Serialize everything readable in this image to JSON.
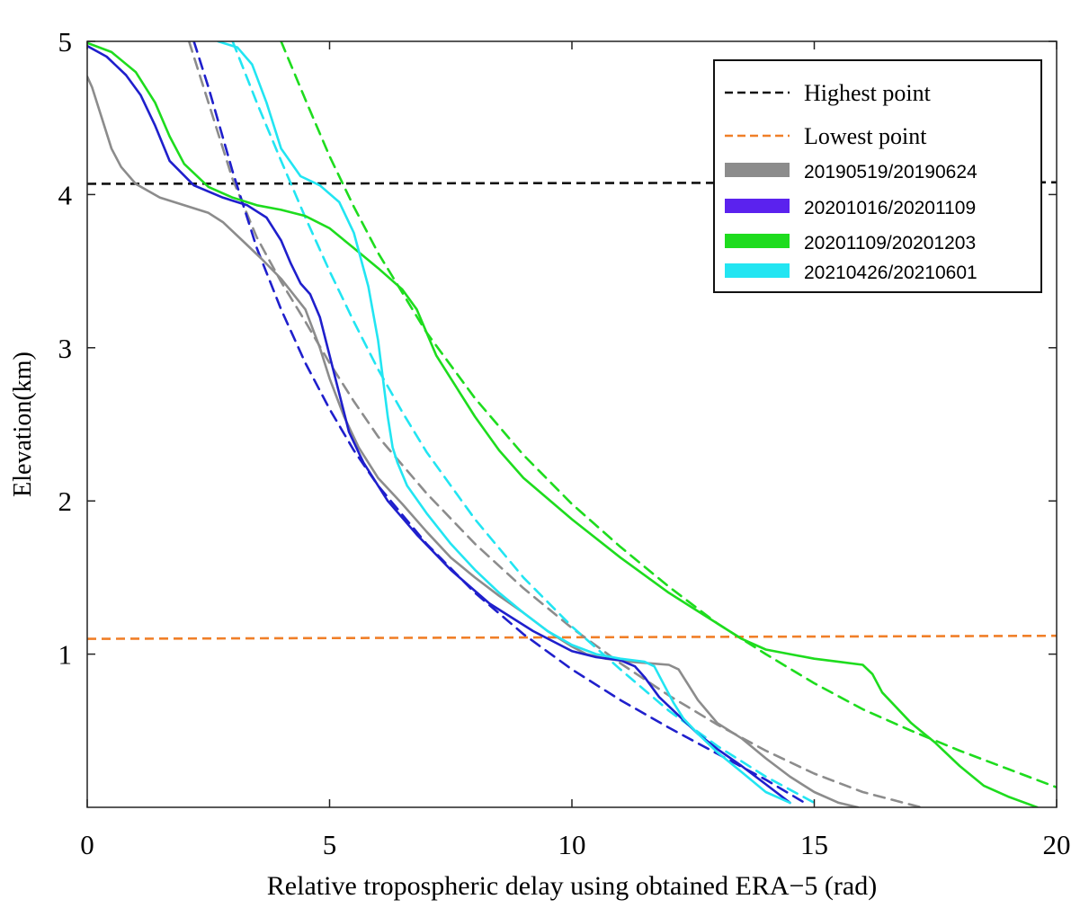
{
  "chart_data": {
    "type": "line",
    "title": "",
    "xlabel": "Relative tropospheric delay using obtained ERA−5 (rad)",
    "ylabel": "Elevation(km)",
    "xlim": [
      0,
      20
    ],
    "ylim": [
      0,
      5
    ],
    "xticks": [
      0,
      5,
      10,
      15,
      20
    ],
    "yticks": [
      1,
      2,
      3,
      4,
      5
    ],
    "xtick_labels": [
      "0",
      "5",
      "10",
      "15",
      "20"
    ],
    "ytick_labels": [
      "1",
      "2",
      "3",
      "4",
      "5"
    ],
    "grid": false,
    "legend_position": "top-right",
    "reference_lines": [
      {
        "name": "Highest point",
        "color": "#111111",
        "style": "dashed",
        "x": [
          0,
          20
        ],
        "y": [
          4.07,
          4.08
        ]
      },
      {
        "name": "Lowest point",
        "color": "#f07f28",
        "style": "dashed",
        "x": [
          0,
          20
        ],
        "y": [
          1.1,
          1.12
        ]
      }
    ],
    "series": [
      {
        "name": "20190519/20190624",
        "color": "#8c8c8c",
        "style": "solid",
        "x": [
          0,
          0.1,
          0.3,
          0.5,
          0.7,
          1,
          1.5,
          2,
          2.5,
          2.8,
          3.2,
          3.6,
          4,
          4.5,
          4.8,
          5,
          5.3,
          5.6,
          6,
          6.5,
          7,
          7.5,
          8,
          8.5,
          9,
          9.5,
          10,
          10.3,
          10.7,
          11.2,
          12,
          12.2,
          12.4,
          12.6,
          13,
          13.5,
          14,
          14.5,
          15,
          15.5,
          15.9
        ],
        "y": [
          4.77,
          4.7,
          4.5,
          4.3,
          4.18,
          4.07,
          3.98,
          3.93,
          3.88,
          3.82,
          3.7,
          3.58,
          3.45,
          3.25,
          3.0,
          2.8,
          2.55,
          2.35,
          2.15,
          1.98,
          1.8,
          1.63,
          1.5,
          1.38,
          1.27,
          1.15,
          1.05,
          1.0,
          0.97,
          0.95,
          0.93,
          0.9,
          0.8,
          0.7,
          0.55,
          0.45,
          0.32,
          0.2,
          0.1,
          0.03,
          0.0
        ]
      },
      {
        "name": "20201016/20201109",
        "color": "#1f1fcc",
        "legend_color": "#5b22ee",
        "style": "solid",
        "x": [
          0,
          0.4,
          0.8,
          1.1,
          1.4,
          1.7,
          2.2,
          2.8,
          3.3,
          3.7,
          4.0,
          4.2,
          4.4,
          4.6,
          4.8,
          5.0,
          5.2,
          5.4,
          5.7,
          6.2,
          6.8,
          7.5,
          8.3,
          9.2,
          10.0,
          10.5,
          11.0,
          11.3,
          11.5,
          11.8,
          12.2,
          12.6,
          13.0,
          13.5,
          14.0,
          14.5
        ],
        "y": [
          4.97,
          4.9,
          4.78,
          4.65,
          4.45,
          4.22,
          4.06,
          3.98,
          3.93,
          3.85,
          3.7,
          3.55,
          3.42,
          3.35,
          3.2,
          2.95,
          2.7,
          2.45,
          2.25,
          2.0,
          1.78,
          1.55,
          1.33,
          1.15,
          1.02,
          0.98,
          0.96,
          0.92,
          0.85,
          0.72,
          0.6,
          0.48,
          0.38,
          0.27,
          0.15,
          0.03
        ]
      },
      {
        "name": "20201109/20201203",
        "color": "#1edc1e",
        "style": "solid",
        "x": [
          0,
          0.5,
          1.0,
          1.4,
          1.7,
          2.0,
          2.5,
          3.0,
          3.5,
          4.0,
          4.5,
          5.0,
          5.5,
          6.0,
          6.5,
          6.8,
          7.0,
          7.2,
          7.5,
          8.0,
          8.5,
          9.0,
          10.0,
          11.0,
          12.0,
          13.0,
          13.5,
          14.0,
          14.5,
          15.0,
          15.5,
          16.0,
          16.2,
          16.4,
          16.7,
          17.0,
          17.5,
          18.0,
          18.5,
          19.0,
          19.6
        ],
        "y": [
          4.99,
          4.93,
          4.8,
          4.6,
          4.38,
          4.2,
          4.05,
          3.98,
          3.93,
          3.9,
          3.86,
          3.78,
          3.65,
          3.52,
          3.38,
          3.25,
          3.1,
          2.95,
          2.8,
          2.55,
          2.33,
          2.15,
          1.88,
          1.63,
          1.4,
          1.2,
          1.1,
          1.03,
          1.0,
          0.97,
          0.95,
          0.93,
          0.87,
          0.75,
          0.65,
          0.55,
          0.42,
          0.27,
          0.14,
          0.07,
          0.0
        ]
      },
      {
        "name": "20210426/20210601",
        "color": "#22e5f2",
        "style": "solid",
        "x": [
          2.7,
          3.1,
          3.4,
          3.7,
          4.0,
          4.4,
          4.8,
          5.2,
          5.5,
          5.8,
          6.0,
          6.1,
          6.2,
          6.3,
          6.4,
          6.6,
          7.0,
          7.5,
          8.0,
          8.5,
          9.0,
          9.5,
          10.0,
          10.5,
          11.0,
          11.5,
          11.7,
          11.9,
          12.1,
          12.3,
          12.6,
          13.0,
          13.5,
          14.0,
          14.5
        ],
        "y": [
          5.0,
          4.96,
          4.85,
          4.6,
          4.3,
          4.12,
          4.06,
          3.95,
          3.75,
          3.4,
          3.05,
          2.8,
          2.55,
          2.35,
          2.25,
          2.1,
          1.92,
          1.72,
          1.55,
          1.4,
          1.27,
          1.15,
          1.06,
          1.0,
          0.97,
          0.95,
          0.92,
          0.8,
          0.68,
          0.58,
          0.48,
          0.36,
          0.23,
          0.1,
          0.03
        ]
      },
      {
        "name": "20190519/20190624 fit",
        "color": "#8c8c8c",
        "style": "dashed",
        "x": [
          2.1,
          2.5,
          3.0,
          3.5,
          4.0,
          4.5,
          5.0,
          5.5,
          6.0,
          7.0,
          8.0,
          9.0,
          10.0,
          11.0,
          12.0,
          13.0,
          14.0,
          15.0,
          16.0,
          17.2
        ],
        "y": [
          5.0,
          4.6,
          4.1,
          3.72,
          3.43,
          3.17,
          2.9,
          2.65,
          2.42,
          2.05,
          1.72,
          1.43,
          1.17,
          0.94,
          0.73,
          0.54,
          0.37,
          0.22,
          0.1,
          0.0
        ]
      },
      {
        "name": "20201016/20201109 fit",
        "color": "#1f1fcc",
        "style": "dashed",
        "x": [
          2.2,
          2.5,
          3.0,
          3.5,
          4.0,
          4.5,
          5.0,
          5.5,
          6.0,
          7.0,
          8.0,
          9.0,
          10.0,
          11.0,
          12.0,
          13.0,
          14.0,
          14.8
        ],
        "y": [
          5.0,
          4.7,
          4.15,
          3.65,
          3.25,
          2.9,
          2.6,
          2.33,
          2.1,
          1.72,
          1.4,
          1.13,
          0.9,
          0.7,
          0.52,
          0.35,
          0.18,
          0.03
        ]
      },
      {
        "name": "20201109/20201203 fit",
        "color": "#1edc1e",
        "style": "dashed",
        "x": [
          4.0,
          4.5,
          5.0,
          5.5,
          6.0,
          7.0,
          8.0,
          9.0,
          10.0,
          11.0,
          12.0,
          13.0,
          14.0,
          15.0,
          16.0,
          17.0,
          18.0,
          19.0,
          20.0
        ],
        "y": [
          5.0,
          4.62,
          4.25,
          3.92,
          3.62,
          3.1,
          2.67,
          2.3,
          1.98,
          1.7,
          1.44,
          1.2,
          1.0,
          0.81,
          0.64,
          0.5,
          0.37,
          0.25,
          0.13
        ]
      },
      {
        "name": "20210426/20210601 fit",
        "color": "#22e5f2",
        "style": "dashed",
        "x": [
          3.0,
          3.5,
          4.0,
          4.5,
          5.0,
          5.5,
          6.0,
          6.5,
          7.0,
          8.0,
          9.0,
          10.0,
          11.0,
          12.0,
          13.0,
          14.0,
          15.0
        ],
        "y": [
          5.0,
          4.6,
          4.22,
          3.85,
          3.5,
          3.17,
          2.86,
          2.58,
          2.32,
          1.88,
          1.5,
          1.18,
          0.9,
          0.63,
          0.4,
          0.2,
          0.03
        ]
      }
    ],
    "legend": [
      {
        "label": "Highest point",
        "color": "#111111",
        "style": "dashed"
      },
      {
        "label": "Lowest point",
        "color": "#f07f28",
        "style": "dashed"
      },
      {
        "label": "20190519/20190624",
        "color": "#8c8c8c",
        "style": "patch"
      },
      {
        "label": "20201016/20201109",
        "color": "#5b22ee",
        "style": "patch"
      },
      {
        "label": "20201109/20201203",
        "color": "#1edc1e",
        "style": "patch"
      },
      {
        "label": "20210426/20210601",
        "color": "#22e5f2",
        "style": "patch"
      }
    ]
  }
}
